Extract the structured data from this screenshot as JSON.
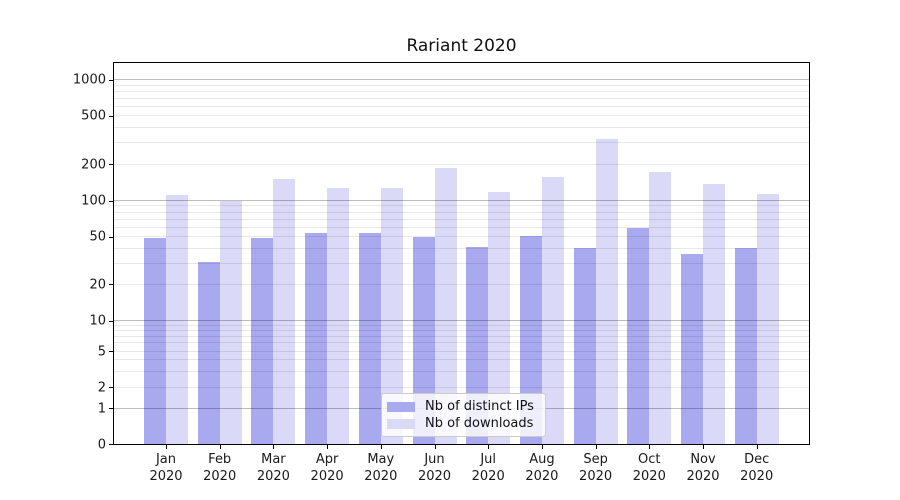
{
  "title": "Rariant 2020",
  "chart_data": {
    "type": "bar",
    "title": "Rariant 2020",
    "year": "2020",
    "categories": [
      "Jan",
      "Feb",
      "Mar",
      "Apr",
      "May",
      "Jun",
      "Jul",
      "Aug",
      "Sep",
      "Oct",
      "Nov",
      "Dec"
    ],
    "series": [
      {
        "name": "Nb of distinct IPs",
        "color": "#a9a9f0",
        "values": [
          49,
          31,
          49,
          54,
          54,
          50,
          41,
          51,
          40,
          59,
          36,
          40
        ]
      },
      {
        "name": "Nb of downloads",
        "color": "#dadaf8",
        "values": [
          110,
          100,
          150,
          127,
          126,
          184,
          118,
          156,
          322,
          172,
          136,
          114
        ]
      }
    ],
    "yscale": "symlog",
    "ylim": [
      0,
      1000
    ],
    "ytick_values": [
      0,
      1,
      2,
      5,
      10,
      20,
      50,
      100,
      200,
      500,
      1000
    ],
    "ytick_labels": [
      "0",
      "1",
      "2",
      "5",
      "10",
      "20",
      "50",
      "100",
      "200",
      "500",
      "1000"
    ],
    "grid": "horizontal, major and minor, drawn above bars",
    "legend_position": "lower center inside plot"
  }
}
